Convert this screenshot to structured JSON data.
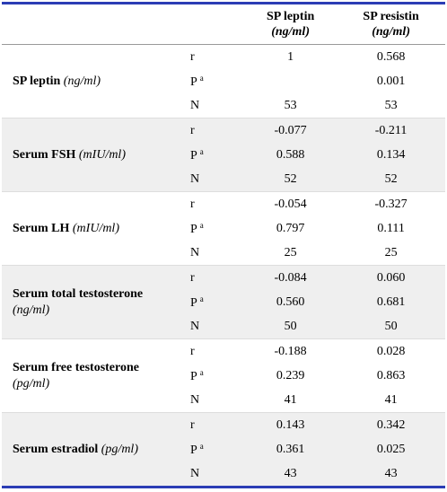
{
  "header": {
    "columns": [
      {
        "name": "SP leptin",
        "unit": "(ng/ml)"
      },
      {
        "name": "SP resistin",
        "unit": "(ng/ml)"
      }
    ]
  },
  "groups": [
    {
      "label": {
        "name": "SP leptin",
        "unit": "(ng/ml)"
      },
      "stats": [
        {
          "stat": "r",
          "values": [
            "1",
            "0.568"
          ]
        },
        {
          "stat": "P",
          "sup": "a",
          "values": [
            "",
            "0.001"
          ]
        },
        {
          "stat": "N",
          "values": [
            "53",
            "53"
          ]
        }
      ]
    },
    {
      "label": {
        "name": "Serum FSH",
        "unit": "(mIU/ml)"
      },
      "stats": [
        {
          "stat": "r",
          "values": [
            "-0.077",
            "-0.211"
          ]
        },
        {
          "stat": "P",
          "sup": "a",
          "values": [
            "0.588",
            "0.134"
          ]
        },
        {
          "stat": "N",
          "values": [
            "52",
            "52"
          ]
        }
      ]
    },
    {
      "label": {
        "name": "Serum LH",
        "unit": "(mIU/ml)"
      },
      "stats": [
        {
          "stat": "r",
          "values": [
            "-0.054",
            "-0.327"
          ]
        },
        {
          "stat": "P",
          "sup": "a",
          "values": [
            "0.797",
            "0.111"
          ]
        },
        {
          "stat": "N",
          "values": [
            "25",
            "25"
          ]
        }
      ]
    },
    {
      "label": {
        "name": "Serum total testosterone",
        "unit": "(ng/ml)"
      },
      "stats": [
        {
          "stat": "r",
          "values": [
            "-0.084",
            "0.060"
          ]
        },
        {
          "stat": "P",
          "sup": "a",
          "values": [
            "0.560",
            "0.681"
          ]
        },
        {
          "stat": "N",
          "values": [
            "50",
            "50"
          ]
        }
      ]
    },
    {
      "label": {
        "name": "Serum free testosterone",
        "unit": "(pg/ml)"
      },
      "stats": [
        {
          "stat": "r",
          "values": [
            "-0.188",
            "0.028"
          ]
        },
        {
          "stat": "P",
          "sup": "a",
          "values": [
            "0.239",
            "0.863"
          ]
        },
        {
          "stat": "N",
          "values": [
            "41",
            "41"
          ]
        }
      ]
    },
    {
      "label": {
        "name": "Serum estradiol",
        "unit": "(pg/ml)"
      },
      "stats": [
        {
          "stat": "r",
          "values": [
            "0.143",
            "0.342"
          ]
        },
        {
          "stat": "P",
          "sup": "a",
          "values": [
            "0.361",
            "0.025"
          ]
        },
        {
          "stat": "N",
          "values": [
            "43",
            "43"
          ]
        }
      ]
    }
  ]
}
